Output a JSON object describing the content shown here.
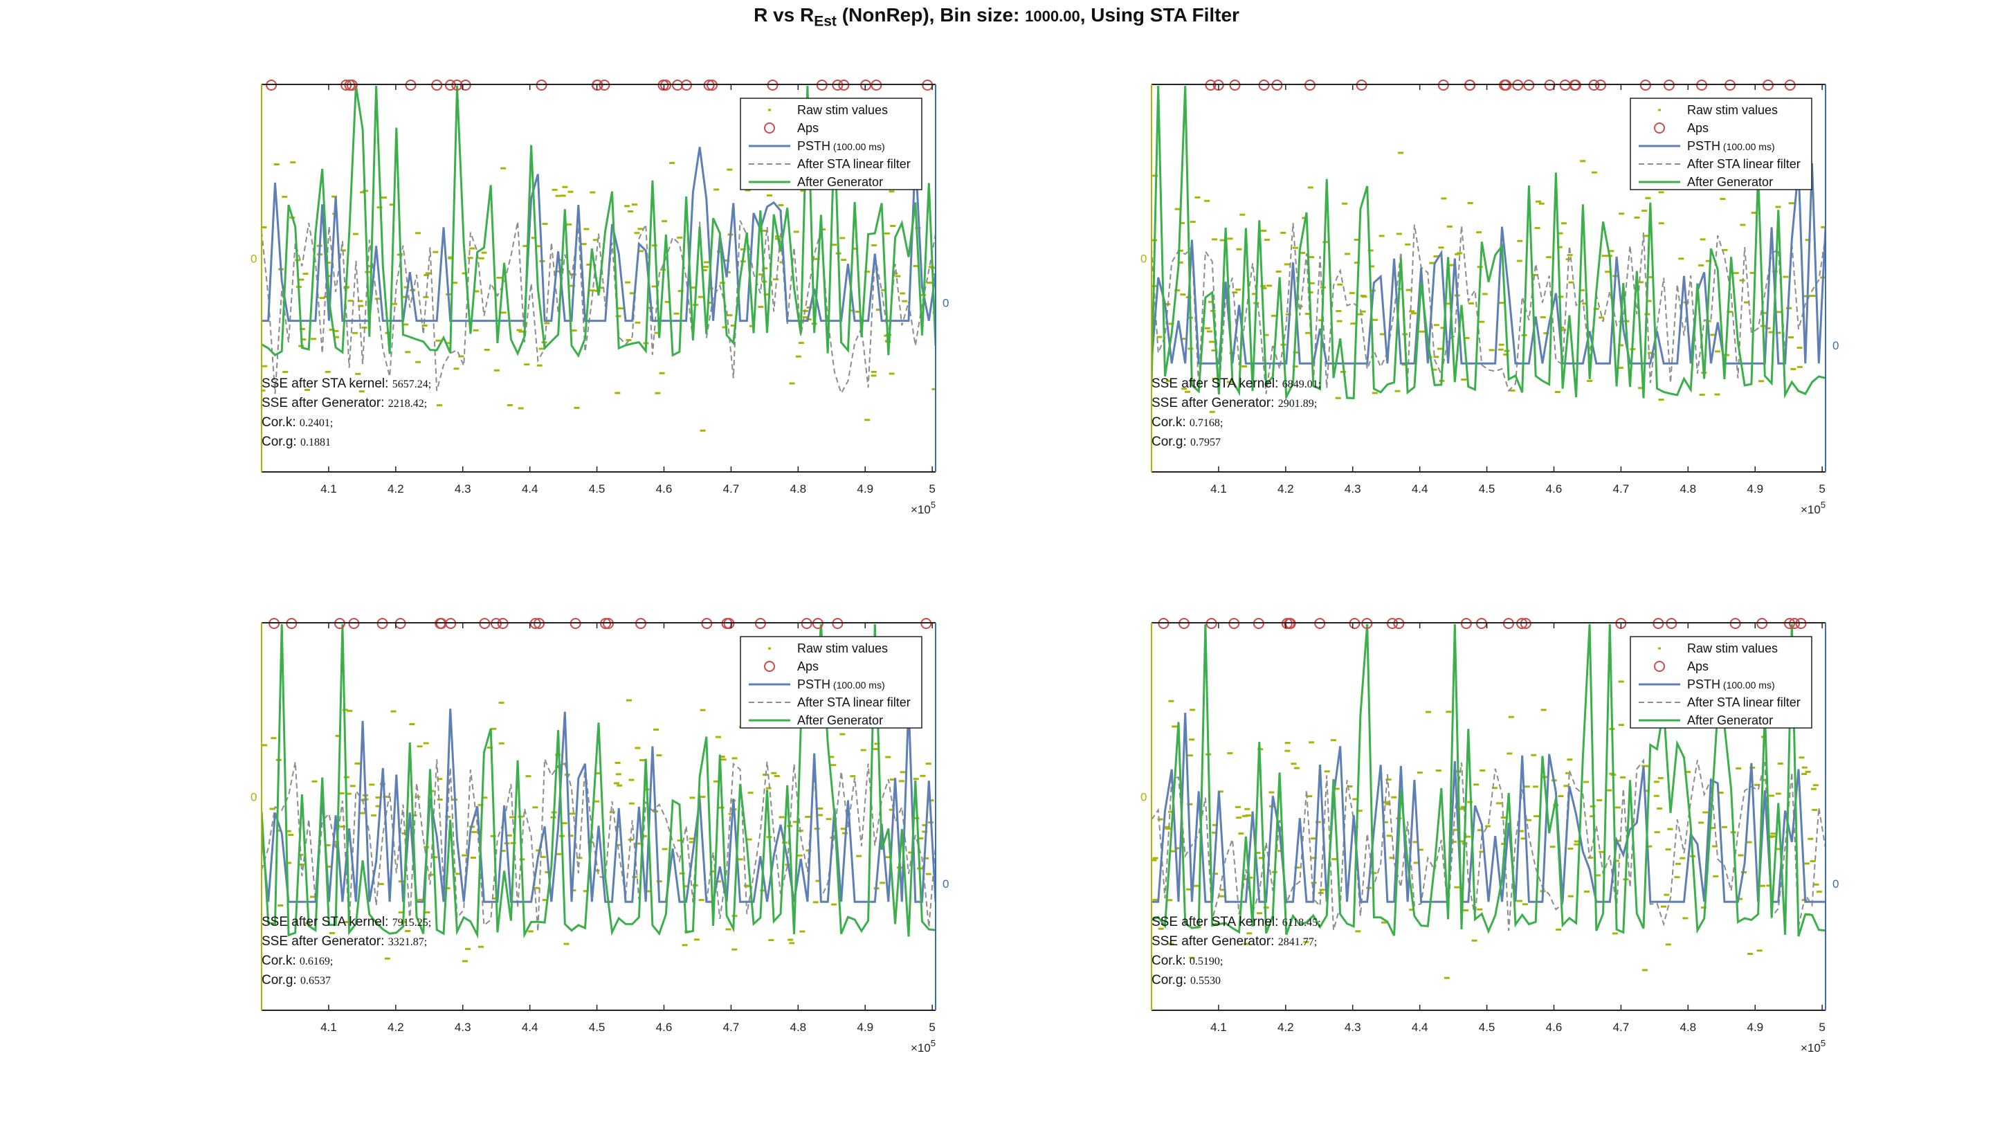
{
  "figure": {
    "title_main": "R vs R",
    "title_sub": "Est",
    "title_mid": " (NonRep), Bin size: ",
    "title_bin": "1000.00",
    "title_end": ", Using STA Filter"
  },
  "legend": {
    "items": [
      "Raw stim values",
      "Aps",
      "PSTH",
      "After STA linear filter",
      "After Generator"
    ],
    "psth_note": "(100.00 ms)"
  },
  "colors": {
    "stim": "#a8b400",
    "aps": "#d04a4a",
    "psth": "#5d7fb5",
    "sta": "#8c8c8c",
    "generator": "#3bb04a",
    "left_axis": "#b2b200",
    "right_axis": "#3a6db5"
  },
  "annotation_labels": {
    "sse_k": "SSE after STA kernel",
    "sse_g": "SSE after Generator",
    "cor_k": "Cor.k",
    "cor_g": "Cor.g"
  },
  "axis": {
    "x_ticks": [
      "4.1",
      "4.2",
      "4.3",
      "4.4",
      "4.5",
      "4.6",
      "4.7",
      "4.8",
      "4.9",
      "5"
    ],
    "x_exponent_base": "×10",
    "x_exponent_power": "5",
    "left_zero": "0",
    "right_zero": "0"
  },
  "chart_data": [
    {
      "type": "line",
      "xlim": [
        400000,
        500500
      ],
      "psth_bin_ms": 100,
      "stats": {
        "sse_k": "5657.24;",
        "sse_g": "2218.42;",
        "cor_k": "0.2401;",
        "cor_g": "0.1881"
      }
    },
    {
      "type": "line",
      "xlim": [
        400000,
        500500
      ],
      "psth_bin_ms": 100,
      "stats": {
        "sse_k": "6849.01;",
        "sse_g": "2901.89;",
        "cor_k": "0.7168;",
        "cor_g": "0.7957"
      }
    },
    {
      "type": "line",
      "xlim": [
        400000,
        500500
      ],
      "psth_bin_ms": 100,
      "stats": {
        "sse_k": "7915.25;",
        "sse_g": "3321.87;",
        "cor_k": "0.6169;",
        "cor_g": "0.6537"
      }
    },
    {
      "type": "line",
      "xlim": [
        400000,
        500500
      ],
      "psth_bin_ms": 100,
      "stats": {
        "sse_k": "6118.45;",
        "sse_g": "2841.77;",
        "cor_k": "0.5190;",
        "cor_g": "0.5530"
      }
    }
  ]
}
